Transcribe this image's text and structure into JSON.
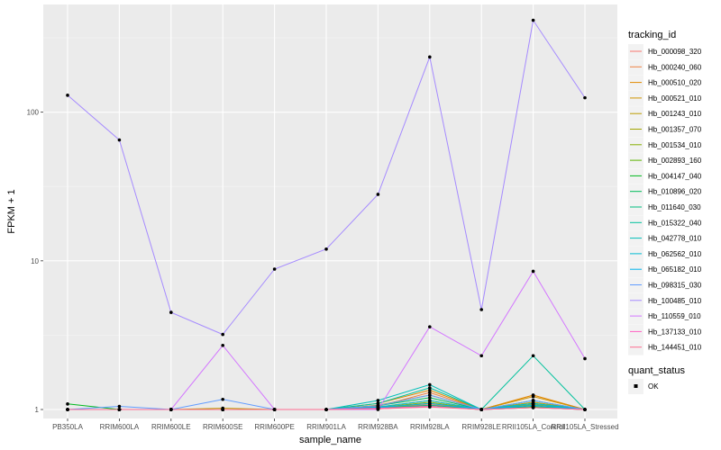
{
  "chart_data": {
    "type": "line",
    "xlabel": "sample_name",
    "ylabel": "FPKM + 1",
    "y_scale": "log10",
    "ylim": [
      0.87,
      530
    ],
    "y_ticks": [
      {
        "value": 1,
        "label": "1"
      },
      {
        "value": 10,
        "label": "10"
      },
      {
        "value": 100,
        "label": "100"
      }
    ],
    "categories": [
      "PB350LA",
      "RRIM600LA",
      "RRIM600LE",
      "RRIM600SE",
      "RRIM600PE",
      "RRIM901LA",
      "RRIM928BA",
      "RRIM928LA",
      "RRIM928LE",
      "RRII105LA_Control",
      "RRII105LA_Stressed"
    ],
    "grid": true,
    "legend_position": "right",
    "legend_title": "tracking_id",
    "series": [
      {
        "name": "Hb_000098_320",
        "color": "#F8766D",
        "values": [
          1,
          1,
          1,
          1,
          1,
          1,
          1.02,
          1.08,
          1,
          1.05,
          1
        ]
      },
      {
        "name": "Hb_000240_060",
        "color": "#EE8043",
        "values": [
          1,
          1,
          1,
          1,
          1,
          1,
          1.05,
          1.3,
          1,
          1.25,
          1
        ]
      },
      {
        "name": "Hb_000510_020",
        "color": "#E18A00",
        "values": [
          1,
          1,
          1,
          1,
          1,
          1,
          1.1,
          1.35,
          1,
          1.25,
          1
        ]
      },
      {
        "name": "Hb_000521_010",
        "color": "#CF9400",
        "values": [
          1,
          1,
          1,
          1,
          1,
          1,
          1.07,
          1.25,
          1,
          1.22,
          1
        ]
      },
      {
        "name": "Hb_001243_010",
        "color": "#BB9D00",
        "values": [
          1,
          1,
          1,
          1.02,
          1,
          1,
          1.04,
          1.15,
          1,
          1.12,
          1
        ]
      },
      {
        "name": "Hb_001357_070",
        "color": "#A3A500",
        "values": [
          1,
          1,
          1,
          1,
          1,
          1,
          1.02,
          1.1,
          1,
          1.08,
          1
        ]
      },
      {
        "name": "Hb_001534_010",
        "color": "#85AD00",
        "values": [
          1,
          1,
          1,
          1,
          1,
          1,
          1.03,
          1.12,
          1,
          1.1,
          1
        ]
      },
      {
        "name": "Hb_002893_160",
        "color": "#5BB300",
        "values": [
          1,
          1,
          1,
          1,
          1,
          1,
          1.01,
          1.05,
          1,
          1.04,
          1
        ]
      },
      {
        "name": "Hb_004147_040",
        "color": "#00B81F",
        "values": [
          1.09,
          1,
          1,
          1,
          1,
          1,
          1.02,
          1.05,
          1,
          1.03,
          1
        ]
      },
      {
        "name": "Hb_010896_020",
        "color": "#00BC59",
        "values": [
          1,
          1,
          1,
          1,
          1,
          1,
          1.06,
          1.2,
          1,
          1.15,
          1
        ]
      },
      {
        "name": "Hb_011640_030",
        "color": "#00BF7D",
        "values": [
          1,
          1,
          1,
          1,
          1,
          1,
          1.02,
          1.07,
          1,
          1.05,
          1
        ]
      },
      {
        "name": "Hb_015322_040",
        "color": "#00C19C",
        "values": [
          1,
          1,
          1,
          1,
          1,
          1,
          1.1,
          1.4,
          1,
          2.3,
          1
        ]
      },
      {
        "name": "Hb_042778_010",
        "color": "#00BFB8",
        "values": [
          1,
          1,
          1,
          1,
          1,
          1,
          1.15,
          1.47,
          1,
          1.1,
          1
        ]
      },
      {
        "name": "Hb_062562_010",
        "color": "#00BBD2",
        "values": [
          1,
          1,
          1,
          1,
          1,
          1,
          1.04,
          1.15,
          1,
          1.1,
          1
        ]
      },
      {
        "name": "Hb_065182_010",
        "color": "#00B3EB",
        "values": [
          1,
          1,
          1,
          1,
          1,
          1,
          1.03,
          1.1,
          1,
          1.07,
          1
        ]
      },
      {
        "name": "Hb_098315_030",
        "color": "#619CFF",
        "values": [
          1,
          1.05,
          1,
          1.17,
          1,
          1,
          1.06,
          1.25,
          1,
          1.15,
          1
        ]
      },
      {
        "name": "Hb_100485_010",
        "color": "#A58AFF",
        "values": [
          130,
          65,
          4.5,
          3.2,
          8.8,
          12,
          28,
          235,
          4.7,
          415,
          125
        ]
      },
      {
        "name": "Hb_110559_010",
        "color": "#D376FF",
        "values": [
          1,
          1,
          1,
          2.7,
          1,
          1,
          1,
          3.6,
          2.3,
          8.5,
          2.2
        ]
      },
      {
        "name": "Hb_137133_010",
        "color": "#FF61C3",
        "values": [
          1,
          1,
          1,
          1,
          1,
          1,
          1.02,
          1.05,
          1,
          1.03,
          1
        ]
      },
      {
        "name": "Hb_144451_010",
        "color": "#FF6C91",
        "values": [
          1,
          1,
          1,
          1,
          1,
          1,
          1.01,
          1.04,
          1,
          1.03,
          1
        ]
      }
    ],
    "legend2": {
      "title": "quant_status",
      "entries": [
        "OK"
      ]
    }
  }
}
